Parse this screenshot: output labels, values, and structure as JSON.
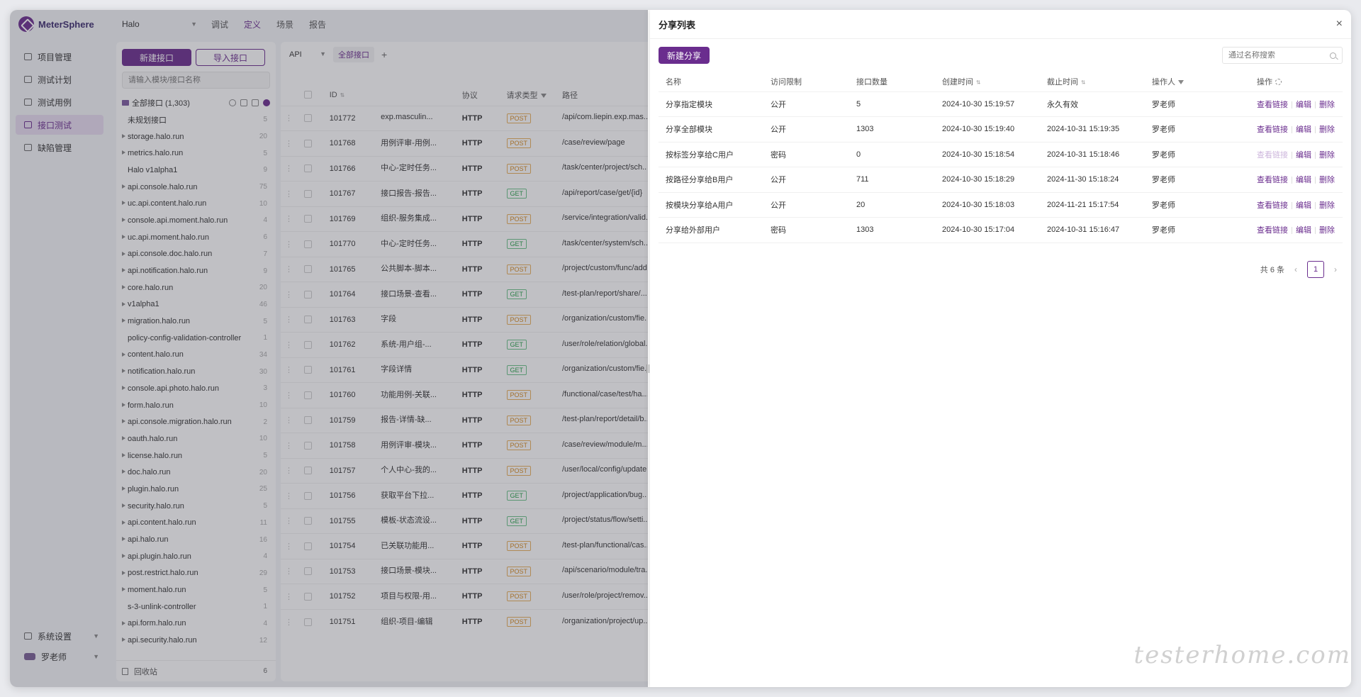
{
  "app": {
    "brand": "MeterSphere",
    "project": "Halo",
    "top_nav": [
      {
        "label": "调试",
        "active": false
      },
      {
        "label": "定义",
        "active": true
      },
      {
        "label": "场景",
        "active": false
      },
      {
        "label": "报告",
        "active": false
      }
    ]
  },
  "sidebar": {
    "items": [
      {
        "label": "项目管理",
        "active": false
      },
      {
        "label": "测试计划",
        "active": false
      },
      {
        "label": "测试用例",
        "active": false
      },
      {
        "label": "接口测试",
        "active": true
      },
      {
        "label": "缺陷管理",
        "active": false
      }
    ],
    "settings_label": "系统设置",
    "user_label": "罗老师"
  },
  "modules": {
    "new_api_label": "新建接口",
    "import_api_label": "导入接口",
    "search_placeholder": "请输入模块/接口名称",
    "root_label": "全部接口 (1,303)",
    "tree": [
      {
        "label": "未规划接口",
        "count": "5",
        "expandable": false
      },
      {
        "label": "storage.halo.run",
        "count": "20",
        "expandable": true
      },
      {
        "label": "metrics.halo.run",
        "count": "5",
        "expandable": true
      },
      {
        "label": "Halo v1alpha1",
        "count": "9",
        "expandable": false
      },
      {
        "label": "api.console.halo.run",
        "count": "75",
        "expandable": true
      },
      {
        "label": "uc.api.content.halo.run",
        "count": "10",
        "expandable": true
      },
      {
        "label": "console.api.moment.halo.run",
        "count": "4",
        "expandable": true
      },
      {
        "label": "uc.api.moment.halo.run",
        "count": "6",
        "expandable": true
      },
      {
        "label": "api.console.doc.halo.run",
        "count": "7",
        "expandable": true
      },
      {
        "label": "api.notification.halo.run",
        "count": "9",
        "expandable": true
      },
      {
        "label": "core.halo.run",
        "count": "20",
        "expandable": true
      },
      {
        "label": "v1alpha1",
        "count": "46",
        "expandable": true
      },
      {
        "label": "migration.halo.run",
        "count": "5",
        "expandable": true
      },
      {
        "label": "policy-config-validation-controller",
        "count": "1",
        "expandable": false
      },
      {
        "label": "content.halo.run",
        "count": "34",
        "expandable": true
      },
      {
        "label": "notification.halo.run",
        "count": "30",
        "expandable": true
      },
      {
        "label": "console.api.photo.halo.run",
        "count": "3",
        "expandable": true
      },
      {
        "label": "form.halo.run",
        "count": "10",
        "expandable": true
      },
      {
        "label": "api.console.migration.halo.run",
        "count": "2",
        "expandable": true
      },
      {
        "label": "oauth.halo.run",
        "count": "10",
        "expandable": true
      },
      {
        "label": "license.halo.run",
        "count": "5",
        "expandable": true
      },
      {
        "label": "doc.halo.run",
        "count": "20",
        "expandable": true
      },
      {
        "label": "plugin.halo.run",
        "count": "25",
        "expandable": true
      },
      {
        "label": "security.halo.run",
        "count": "5",
        "expandable": true
      },
      {
        "label": "api.content.halo.run",
        "count": "11",
        "expandable": true
      },
      {
        "label": "api.halo.run",
        "count": "16",
        "expandable": true
      },
      {
        "label": "api.plugin.halo.run",
        "count": "4",
        "expandable": true
      },
      {
        "label": "post.restrict.halo.run",
        "count": "29",
        "expandable": true
      },
      {
        "label": "moment.halo.run",
        "count": "5",
        "expandable": true
      },
      {
        "label": "s-3-unlink-controller",
        "count": "1",
        "expandable": false
      },
      {
        "label": "api.form.halo.run",
        "count": "4",
        "expandable": true
      },
      {
        "label": "api.security.halo.run",
        "count": "12",
        "expandable": true
      }
    ],
    "recycle_label": "回收站",
    "recycle_count": "6"
  },
  "api_list": {
    "protocol_select": "API",
    "tab_label": "全部接口",
    "headers": {
      "id": "ID",
      "protocol": "协议",
      "method": "请求类型",
      "path": "路径"
    },
    "rows": [
      {
        "id": "101772",
        "name": "exp.masculin...",
        "protocol": "HTTP",
        "method": "POST",
        "path": "/api/com.liepin.exp.mas..."
      },
      {
        "id": "101768",
        "name": "用例评审-用例...",
        "protocol": "HTTP",
        "method": "POST",
        "path": "/case/review/page"
      },
      {
        "id": "101766",
        "name": "中心-定时任务...",
        "protocol": "HTTP",
        "method": "POST",
        "path": "/task/center/project/sch..."
      },
      {
        "id": "101767",
        "name": "接口报告-报告...",
        "protocol": "HTTP",
        "method": "GET",
        "path": "/api/report/case/get/{id}"
      },
      {
        "id": "101769",
        "name": "组织-服务集成...",
        "protocol": "HTTP",
        "method": "POST",
        "path": "/service/integration/valid..."
      },
      {
        "id": "101770",
        "name": "中心-定时任务...",
        "protocol": "HTTP",
        "method": "GET",
        "path": "/task/center/system/sch..."
      },
      {
        "id": "101765",
        "name": "公共脚本-脚本...",
        "protocol": "HTTP",
        "method": "POST",
        "path": "/project/custom/func/add"
      },
      {
        "id": "101764",
        "name": "接口场景-查看...",
        "protocol": "HTTP",
        "method": "GET",
        "path": "/test-plan/report/share/..."
      },
      {
        "id": "101763",
        "name": "字段",
        "protocol": "HTTP",
        "method": "POST",
        "path": "/organization/custom/fie..."
      },
      {
        "id": "101762",
        "name": "系统-用户组-...",
        "protocol": "HTTP",
        "method": "GET",
        "path": "/user/role/relation/global..."
      },
      {
        "id": "101761",
        "name": "字段详情",
        "protocol": "HTTP",
        "method": "GET",
        "path": "/organization/custom/fie..."
      },
      {
        "id": "101760",
        "name": "功能用例-关联...",
        "protocol": "HTTP",
        "method": "POST",
        "path": "/functional/case/test/ha..."
      },
      {
        "id": "101759",
        "name": "报告-详情-缺...",
        "protocol": "HTTP",
        "method": "POST",
        "path": "/test-plan/report/detail/b..."
      },
      {
        "id": "101758",
        "name": "用例评审-模块...",
        "protocol": "HTTP",
        "method": "POST",
        "path": "/case/review/module/m..."
      },
      {
        "id": "101757",
        "name": "个人中心-我的...",
        "protocol": "HTTP",
        "method": "POST",
        "path": "/user/local/config/update"
      },
      {
        "id": "101756",
        "name": "获取平台下拉...",
        "protocol": "HTTP",
        "method": "GET",
        "path": "/project/application/bug..."
      },
      {
        "id": "101755",
        "name": "模板-状态流设...",
        "protocol": "HTTP",
        "method": "GET",
        "path": "/project/status/flow/setti..."
      },
      {
        "id": "101754",
        "name": "已关联功能用...",
        "protocol": "HTTP",
        "method": "POST",
        "path": "/test-plan/functional/cas..."
      },
      {
        "id": "101753",
        "name": "接口场景-模块...",
        "protocol": "HTTP",
        "method": "POST",
        "path": "/api/scenario/module/tra..."
      },
      {
        "id": "101752",
        "name": "项目与权限-用...",
        "protocol": "HTTP",
        "method": "POST",
        "path": "/user/role/project/remov..."
      },
      {
        "id": "101751",
        "name": "组织-项目-编辑",
        "protocol": "HTTP",
        "method": "POST",
        "path": "/organization/project/up..."
      }
    ]
  },
  "share_drawer": {
    "title": "分享列表",
    "close_glyph": "×",
    "new_share_label": "新建分享",
    "search_placeholder": "通过名称搜索",
    "headers": {
      "name": "名称",
      "access": "访问限制",
      "count": "接口数量",
      "created": "创建时间",
      "expire": "截止时间",
      "operator": "操作人",
      "actions": "操作"
    },
    "action_labels": {
      "view": "查看链接",
      "edit": "编辑",
      "delete": "删除"
    },
    "rows": [
      {
        "name": "分享指定模块",
        "access": "公开",
        "count": "5",
        "created": "2024-10-30 15:19:57",
        "expire": "永久有效",
        "operator": "罗老师",
        "view_disabled": false
      },
      {
        "name": "分享全部模块",
        "access": "公开",
        "count": "1303",
        "created": "2024-10-30 15:19:40",
        "expire": "2024-10-31 15:19:35",
        "operator": "罗老师",
        "view_disabled": false
      },
      {
        "name": "按标签分享给C用户",
        "access": "密码",
        "count": "0",
        "created": "2024-10-30 15:18:54",
        "expire": "2024-10-31 15:18:46",
        "operator": "罗老师",
        "view_disabled": true
      },
      {
        "name": "按路径分享给B用户",
        "access": "公开",
        "count": "711",
        "created": "2024-10-30 15:18:29",
        "expire": "2024-11-30 15:18:24",
        "operator": "罗老师",
        "view_disabled": false
      },
      {
        "name": "按模块分享给A用户",
        "access": "公开",
        "count": "20",
        "created": "2024-10-30 15:18:03",
        "expire": "2024-11-21 15:17:54",
        "operator": "罗老师",
        "view_disabled": false
      },
      {
        "name": "分享给外部用户",
        "access": "密码",
        "count": "1303",
        "created": "2024-10-30 15:17:04",
        "expire": "2024-10-31 15:16:47",
        "operator": "罗老师",
        "view_disabled": false
      }
    ],
    "pagination": {
      "total_text": "共 6 条",
      "current_page": "1"
    }
  },
  "watermark": "testerhome.com",
  "colors": {
    "accent": "#6a2d8e",
    "post": "#d5881c",
    "get": "#24a148"
  }
}
